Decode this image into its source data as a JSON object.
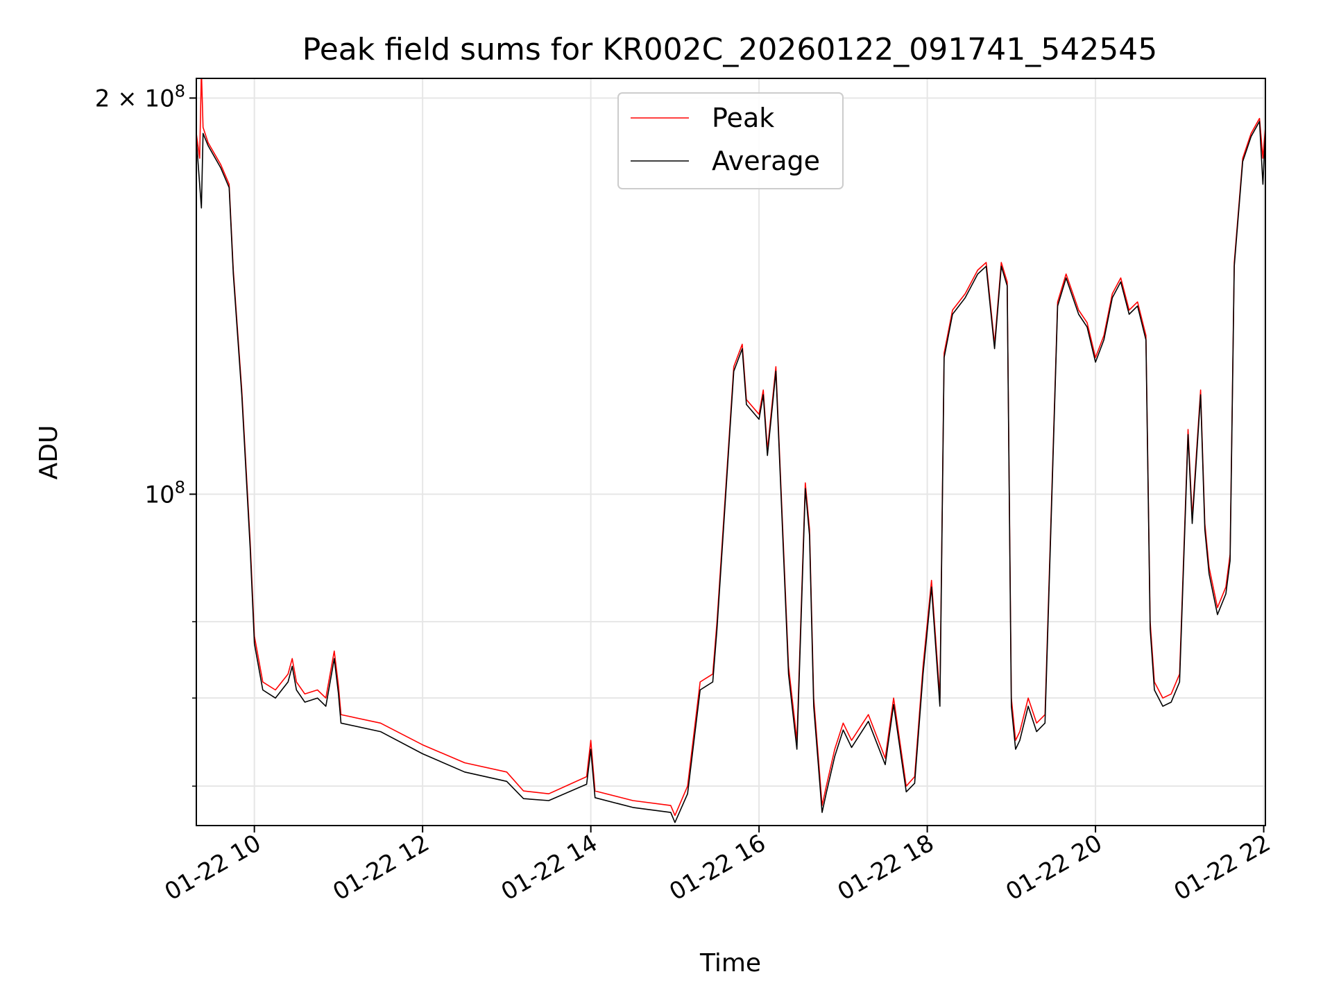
{
  "chart_data": {
    "type": "line",
    "title": "Peak field sums for KR002C_20260122_091741_542545",
    "xlabel": "Time",
    "ylabel": "ADU",
    "yscale": "log",
    "x_unit": "hours since 2026-01-22 00:00",
    "xlim": [
      9.31,
      22.02
    ],
    "ylim": [
      56000000,
      207000000
    ],
    "x_ticks": [
      10,
      12,
      14,
      16,
      18,
      20,
      22
    ],
    "x_tick_labels": [
      "01-22 10",
      "01-22 12",
      "01-22 14",
      "01-22 16",
      "01-22 18",
      "01-22 20",
      "01-22 22"
    ],
    "y_tick_labels": [
      {
        "value": 200000000,
        "base": "2 × 10",
        "exp": "8"
      },
      {
        "value": 100000000,
        "base": "10",
        "exp": "8"
      }
    ],
    "y_minor_ticks": [
      60000000,
      70000000,
      80000000
    ],
    "grid": true,
    "legend_position": "top-center",
    "series": [
      {
        "name": "Peak",
        "color": "#ff0000",
        "x": [
          9.31,
          9.35,
          9.37,
          9.39,
          9.45,
          9.6,
          9.7,
          9.75,
          9.85,
          9.95,
          10.0,
          10.1,
          10.25,
          10.4,
          10.45,
          10.5,
          10.6,
          10.75,
          10.85,
          10.95,
          11.0,
          11.03,
          11.5,
          12.0,
          12.5,
          13.0,
          13.2,
          13.5,
          13.95,
          14.0,
          14.05,
          14.5,
          14.95,
          15.0,
          15.15,
          15.3,
          15.45,
          15.5,
          15.6,
          15.7,
          15.8,
          15.85,
          16.0,
          16.05,
          16.1,
          16.2,
          16.35,
          16.45,
          16.55,
          16.6,
          16.65,
          16.75,
          16.8,
          16.9,
          17.0,
          17.1,
          17.3,
          17.5,
          17.6,
          17.75,
          17.85,
          17.95,
          18.05,
          18.15,
          18.2,
          18.3,
          18.45,
          18.6,
          18.7,
          18.8,
          18.88,
          18.95,
          19.0,
          19.05,
          19.1,
          19.2,
          19.3,
          19.4,
          19.55,
          19.65,
          19.8,
          19.9,
          20.0,
          20.1,
          20.2,
          20.3,
          20.4,
          20.5,
          20.6,
          20.65,
          20.7,
          20.8,
          20.9,
          21.0,
          21.1,
          21.15,
          21.25,
          21.3,
          21.35,
          21.45,
          21.55,
          21.6,
          21.65,
          21.75,
          21.85,
          21.95,
          21.99,
          22.02
        ],
        "values": [
          188000000,
          180000000,
          210000000,
          190000000,
          185000000,
          178000000,
          172000000,
          148000000,
          120000000,
          92000000,
          78000000,
          72000000,
          71000000,
          73000000,
          75000000,
          72000000,
          70500000,
          71000000,
          70000000,
          76000000,
          71500000,
          68000000,
          67000000,
          64500000,
          62500000,
          61500000,
          59500000,
          59200000,
          61000000,
          65000000,
          59500000,
          58500000,
          58000000,
          57000000,
          60000000,
          72000000,
          73000000,
          80000000,
          100000000,
          125000000,
          130000000,
          118000000,
          115000000,
          120000000,
          108000000,
          125000000,
          74000000,
          65000000,
          102000000,
          94000000,
          70000000,
          58000000,
          60000000,
          64000000,
          67000000,
          65000000,
          68000000,
          63000000,
          70000000,
          60000000,
          61000000,
          74000000,
          86000000,
          70000000,
          128000000,
          138000000,
          142000000,
          148000000,
          150000000,
          130000000,
          150000000,
          145000000,
          70000000,
          65000000,
          66000000,
          70000000,
          67000000,
          68000000,
          140000000,
          147000000,
          138000000,
          135000000,
          127000000,
          132000000,
          142000000,
          146000000,
          138000000,
          140000000,
          132000000,
          80000000,
          72000000,
          70000000,
          70500000,
          73000000,
          112000000,
          96000000,
          120000000,
          95000000,
          88000000,
          82000000,
          85000000,
          90000000,
          150000000,
          180000000,
          188000000,
          193000000,
          180000000,
          190000000
        ]
      },
      {
        "name": "Average",
        "color": "#000000",
        "x": [
          9.31,
          9.35,
          9.37,
          9.39,
          9.45,
          9.6,
          9.7,
          9.75,
          9.85,
          9.95,
          10.0,
          10.1,
          10.25,
          10.4,
          10.45,
          10.5,
          10.6,
          10.75,
          10.85,
          10.95,
          11.0,
          11.03,
          11.5,
          12.0,
          12.5,
          13.0,
          13.2,
          13.5,
          13.95,
          14.0,
          14.05,
          14.5,
          14.95,
          15.0,
          15.15,
          15.3,
          15.45,
          15.5,
          15.6,
          15.7,
          15.8,
          15.85,
          16.0,
          16.05,
          16.1,
          16.2,
          16.35,
          16.45,
          16.55,
          16.6,
          16.65,
          16.75,
          16.8,
          16.9,
          17.0,
          17.1,
          17.3,
          17.5,
          17.6,
          17.75,
          17.85,
          17.95,
          18.05,
          18.15,
          18.2,
          18.3,
          18.45,
          18.6,
          18.7,
          18.8,
          18.88,
          18.95,
          19.0,
          19.05,
          19.1,
          19.2,
          19.3,
          19.4,
          19.55,
          19.65,
          19.8,
          19.9,
          20.0,
          20.1,
          20.2,
          20.3,
          20.4,
          20.5,
          20.6,
          20.65,
          20.7,
          20.8,
          20.9,
          21.0,
          21.1,
          21.15,
          21.25,
          21.3,
          21.35,
          21.45,
          21.55,
          21.6,
          21.65,
          21.75,
          21.85,
          21.95,
          21.99,
          22.02
        ],
        "values": [
          186000000,
          172000000,
          165000000,
          188000000,
          184000000,
          177000000,
          171000000,
          147000000,
          119000000,
          91000000,
          77000000,
          71000000,
          70000000,
          72000000,
          74000000,
          71000000,
          69500000,
          70000000,
          69000000,
          75000000,
          70500000,
          67000000,
          66000000,
          63500000,
          61500000,
          60500000,
          58700000,
          58500000,
          60200000,
          64000000,
          58800000,
          57800000,
          57300000,
          56300000,
          59200000,
          71000000,
          72000000,
          79000000,
          99000000,
          124000000,
          129000000,
          117000000,
          114000000,
          119000000,
          107000000,
          124000000,
          73000000,
          64000000,
          101000000,
          93000000,
          69000000,
          57300000,
          59300000,
          63200000,
          66200000,
          64200000,
          67200000,
          62300000,
          69200000,
          59400000,
          60300000,
          73000000,
          85000000,
          69000000,
          127000000,
          137000000,
          141000000,
          147000000,
          149000000,
          129000000,
          149000000,
          144000000,
          69000000,
          64000000,
          65000000,
          69000000,
          66000000,
          67000000,
          139000000,
          146000000,
          137000000,
          134000000,
          126000000,
          131000000,
          141000000,
          145000000,
          137000000,
          139000000,
          131000000,
          79000000,
          71000000,
          69000000,
          69500000,
          72000000,
          111000000,
          95000000,
          119000000,
          94000000,
          87000000,
          81000000,
          84000000,
          89000000,
          149000000,
          179000000,
          187000000,
          192000000,
          172000000,
          189000000
        ]
      }
    ]
  }
}
